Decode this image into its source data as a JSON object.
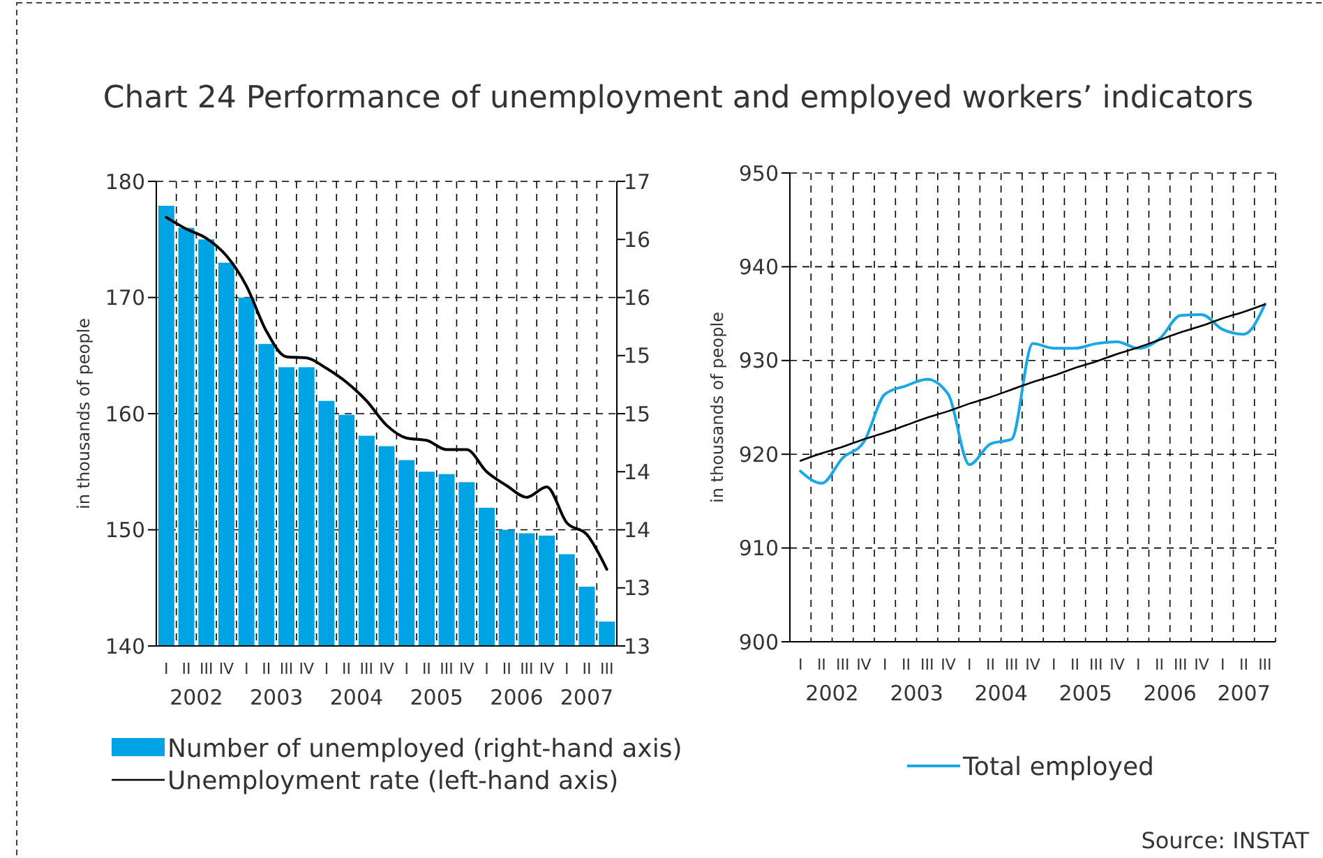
{
  "chart_data": [
    {
      "type": "bar",
      "title": "Chart 24 Performance of unemployment and employed workers’ indicators",
      "ylabel": "in thousands of people",
      "categories": [
        "I",
        "II",
        "III",
        "IV",
        "I",
        "II",
        "III",
        "IV",
        "I",
        "II",
        "III",
        "IV",
        "I",
        "II",
        "III",
        "IV",
        "I",
        "II",
        "III",
        "IV",
        "I",
        "II",
        "III"
      ],
      "series": [
        {
          "name": "Number of unemployed (right-hand axis)",
          "color": "#00a3e4",
          "values": [
            177.9,
            176,
            175,
            173,
            170,
            166,
            164,
            164,
            161.1,
            159.9,
            158.1,
            157.2,
            156,
            155,
            154.8,
            154.1,
            151.9,
            150,
            149.7,
            149.5,
            147.9,
            145.1,
            142.1
          ]
        },
        {
          "name": "Unemployment rate (left-hand axis)",
          "type": "line",
          "axis": "y2",
          "color": "#000000",
          "values": [
            16.69,
            16.59,
            16.51,
            16.36,
            16.1,
            15.71,
            15.49,
            15.48,
            15.39,
            15.27,
            15.11,
            14.9,
            14.79,
            14.77,
            14.69,
            14.69,
            14.5,
            14.38,
            14.28,
            14.37,
            14.06,
            13.96,
            13.66
          ]
        }
      ],
      "ylim": [
        140,
        180
      ],
      "yticks": [
        140,
        150,
        160,
        170,
        180
      ],
      "y2lim": [
        13,
        17
      ],
      "y2ticks": [
        13,
        {
          "value": 13.5,
          "label": "13"
        },
        14,
        {
          "value": 14.5,
          "label": "14"
        },
        15,
        {
          "value": 15.5,
          "label": "15"
        },
        16,
        {
          "value": 16.5,
          "label": "16"
        },
        17
      ],
      "grid": true,
      "legend": "bottom left",
      "annotations": [
        "2002",
        "2003",
        "2004",
        "2005",
        "2006",
        "2007"
      ]
    },
    {
      "type": "line",
      "ylabel": "in thousands of people",
      "categories": [
        "I",
        "II",
        "III",
        "IV",
        "I",
        "II",
        "III",
        "IV",
        "I",
        "II",
        "III",
        "IV",
        "I",
        "II",
        "III",
        "IV",
        "I",
        "II",
        "III",
        "IV",
        "I",
        "II",
        "III"
      ],
      "series": [
        {
          "name": "Total employed",
          "color": "#1aa7e6",
          "values": [
            918.2,
            916.9,
            919.6,
            921.3,
            926.4,
            927.3,
            928,
            926.4,
            918.9,
            921.1,
            921.6,
            931.8,
            931.3,
            931.3,
            931.8,
            932,
            931.3,
            932.3,
            934.8,
            934.9,
            933.3,
            932.8,
            936
          ]
        },
        {
          "type": "line",
          "color": "#000000",
          "values": [
            919.3,
            920.1,
            920.8,
            921.6,
            922.3,
            923.1,
            923.9,
            924.6,
            925.4,
            926.1,
            926.9,
            927.7,
            928.4,
            929.2,
            929.9,
            930.7,
            931.4,
            932.2,
            933,
            933.7,
            934.5,
            935.2,
            936
          ]
        }
      ],
      "ylim": [
        900,
        950
      ],
      "yticks": [
        900,
        910,
        920,
        930,
        940,
        950
      ],
      "grid": true,
      "legend": "bottom",
      "annotations": [
        "2002",
        "2003",
        "2004",
        "2005",
        "2006",
        "2007",
        "Source: INSTAT"
      ]
    }
  ]
}
